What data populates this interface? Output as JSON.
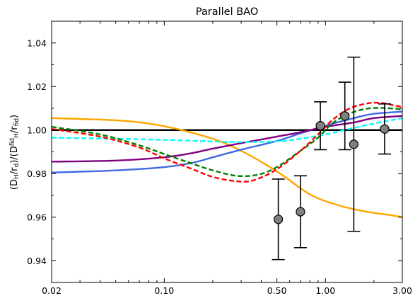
{
  "chart_data": {
    "type": "line",
    "title": "Parallel BAO",
    "xlabel": "",
    "ylabel": {
      "parts": [
        {
          "t": "(D",
          "s": "normal"
        },
        {
          "t": "H",
          "s": "sub"
        },
        {
          "t": "/r",
          "s": "normal"
        },
        {
          "t": "d",
          "s": "sub"
        },
        {
          "t": ")/(D",
          "s": "normal"
        },
        {
          "t": "fid",
          "s": "sup"
        },
        {
          "t": "H",
          "s": "sub"
        },
        {
          "t": "/r",
          "s": "normal"
        },
        {
          "t": "fid",
          "s": "sub"
        },
        {
          "t": ")",
          "s": "normal"
        }
      ]
    },
    "xscale": "log",
    "xlim": [
      0.02,
      3.0
    ],
    "ylim": [
      0.93,
      1.05
    ],
    "xticks": [
      0.02,
      0.1,
      0.5,
      1.0,
      3.0
    ],
    "xtick_labels": [
      "0.02",
      "0.10",
      "0.50",
      "1.00",
      "3.00"
    ],
    "yticks": [
      0.94,
      0.96,
      0.98,
      1.0,
      1.02,
      1.04
    ],
    "ytick_labels": [
      "0.94",
      "0.96",
      "0.98",
      "1.00",
      "1.02",
      "1.04"
    ],
    "grid": false,
    "reference_line": {
      "y": 1.0,
      "color": "#000000"
    },
    "series": [
      {
        "color": "#ffa500",
        "style": "solid",
        "x": [
          0.02,
          0.05,
          0.08,
          0.12,
          0.2,
          0.3,
          0.5,
          0.8,
          1.2,
          1.8,
          2.5,
          3.0
        ],
        "y": [
          1.0055,
          1.0045,
          1.003,
          1.0005,
          0.996,
          0.9905,
          0.981,
          0.9705,
          0.9655,
          0.9625,
          0.961,
          0.96
        ]
      },
      {
        "color": "#4169e1",
        "style": "solid",
        "x": [
          0.02,
          0.05,
          0.1,
          0.15,
          0.2,
          0.3,
          0.5,
          0.7,
          1.0,
          1.5,
          2.0,
          3.0
        ],
        "y": [
          0.9805,
          0.9815,
          0.983,
          0.985,
          0.9875,
          0.991,
          0.995,
          0.9985,
          1.002,
          1.0055,
          1.0075,
          1.0085
        ]
      },
      {
        "color": "#800080",
        "style": "solid",
        "x": [
          0.02,
          0.05,
          0.1,
          0.15,
          0.2,
          0.3,
          0.5,
          0.7,
          1.0,
          1.5,
          2.0,
          3.0
        ],
        "y": [
          0.9855,
          0.986,
          0.9875,
          0.9895,
          0.9915,
          0.994,
          0.997,
          0.999,
          1.0015,
          1.0035,
          1.0055,
          1.0065
        ]
      },
      {
        "color": "#00ffff",
        "style": "dashed",
        "x": [
          0.02,
          0.05,
          0.1,
          0.2,
          0.3,
          0.5,
          0.7,
          1.0,
          1.5,
          2.0,
          3.0
        ],
        "y": [
          0.9965,
          0.996,
          0.9955,
          0.9948,
          0.9945,
          0.9948,
          0.996,
          0.998,
          1.001,
          1.003,
          1.0055
        ]
      },
      {
        "color": "#008000",
        "style": "dashed",
        "x": [
          0.02,
          0.04,
          0.07,
          0.1,
          0.15,
          0.2,
          0.28,
          0.38,
          0.5,
          0.7,
          0.9,
          1.1,
          1.4,
          1.8,
          2.2,
          2.7,
          3.0
        ],
        "y": [
          1.0015,
          0.998,
          0.993,
          0.989,
          0.9845,
          0.9815,
          0.979,
          0.9795,
          0.983,
          0.9905,
          0.9965,
          1.003,
          1.0075,
          1.0098,
          1.0102,
          1.0098,
          1.0095
        ]
      },
      {
        "color": "#ff0000",
        "style": "dashed",
        "x": [
          0.02,
          0.04,
          0.07,
          0.1,
          0.15,
          0.2,
          0.28,
          0.36,
          0.5,
          0.7,
          0.9,
          1.1,
          1.4,
          1.8,
          2.2,
          2.6,
          3.0
        ],
        "y": [
          1.0005,
          0.997,
          0.992,
          0.987,
          0.982,
          0.9785,
          0.9765,
          0.977,
          0.982,
          0.9905,
          0.998,
          1.0045,
          1.0098,
          1.0122,
          1.0125,
          1.0115,
          1.0105
        ]
      }
    ],
    "points": {
      "marker": "circle",
      "face_color": "#808080",
      "edge_color": "#000000",
      "data": [
        {
          "x": 0.51,
          "y": 0.959,
          "yerr": 0.0185
        },
        {
          "x": 0.7,
          "y": 0.9625,
          "yerr": 0.0165
        },
        {
          "x": 0.93,
          "y": 1.002,
          "yerr": 0.011
        },
        {
          "x": 1.32,
          "y": 1.0065,
          "yerr": 0.0155
        },
        {
          "x": 1.5,
          "y": 0.9935,
          "yerr": 0.04
        },
        {
          "x": 2.33,
          "y": 1.0005,
          "yerr": 0.0115
        }
      ]
    }
  }
}
